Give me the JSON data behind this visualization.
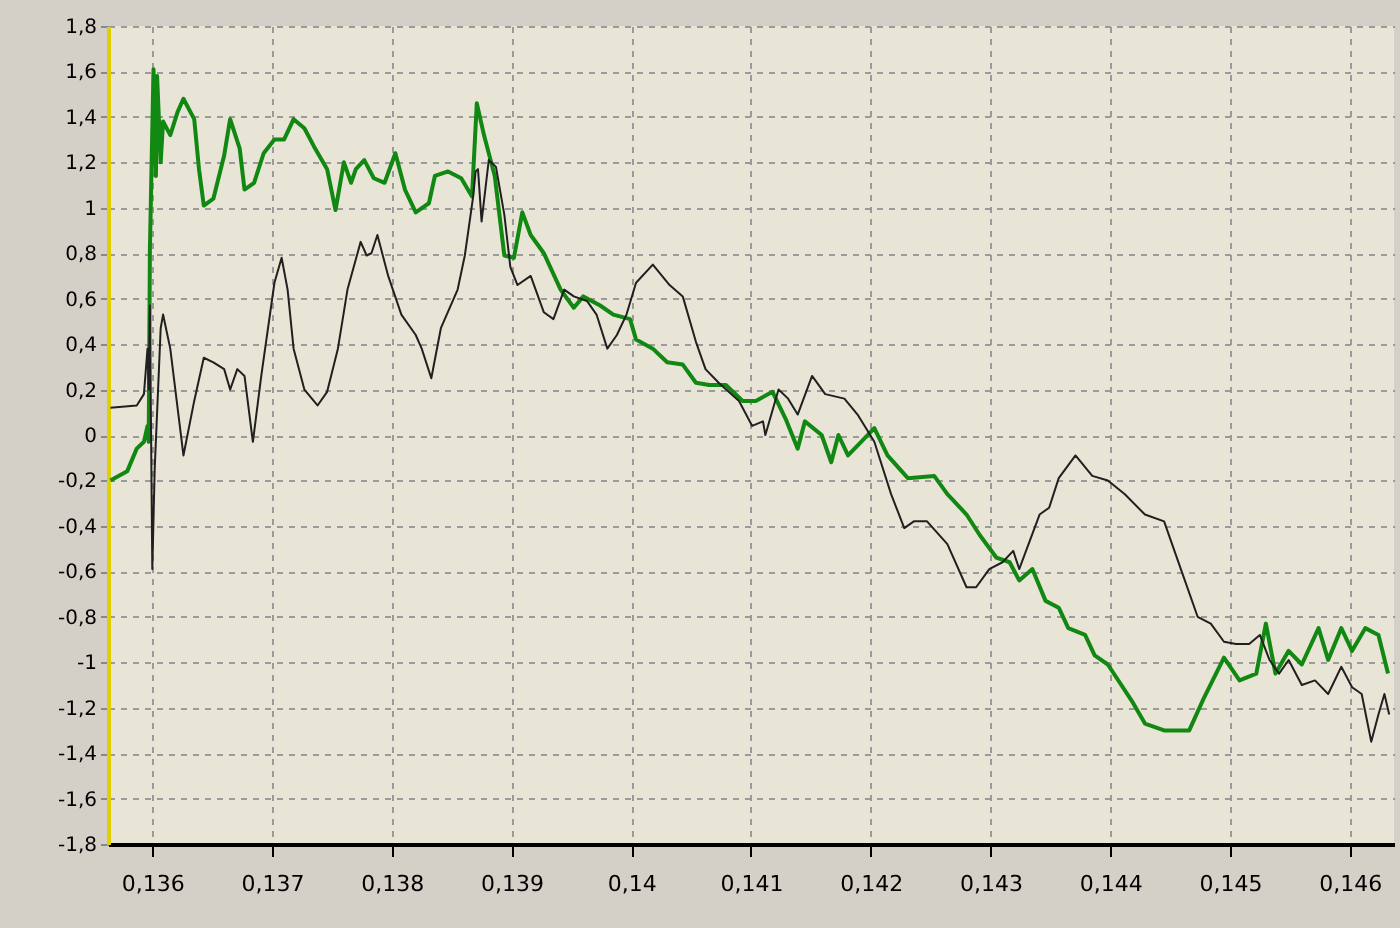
{
  "chart_data": {
    "type": "line",
    "xlim": [
      0.13563,
      0.14637
    ],
    "ylim": [
      -1.8,
      1.8
    ],
    "xticks": [
      {
        "value": 0.136,
        "label": "0,136"
      },
      {
        "value": 0.137,
        "label": "0,137"
      },
      {
        "value": 0.138,
        "label": "0,138"
      },
      {
        "value": 0.139,
        "label": "0,139"
      },
      {
        "value": 0.14,
        "label": "0,14"
      },
      {
        "value": 0.141,
        "label": "0,141"
      },
      {
        "value": 0.142,
        "label": "0,142"
      },
      {
        "value": 0.143,
        "label": "0,143"
      },
      {
        "value": 0.144,
        "label": "0,144"
      },
      {
        "value": 0.145,
        "label": "0,145"
      },
      {
        "value": 0.146,
        "label": "0,146"
      }
    ],
    "yticks": [
      {
        "value": 1.8,
        "label": "1,8"
      },
      {
        "value": 1.6,
        "label": "1,6"
      },
      {
        "value": 1.4,
        "label": "1,4"
      },
      {
        "value": 1.2,
        "label": "1,2"
      },
      1,
      {
        "value": 0.8,
        "label": "0,8"
      },
      {
        "value": 0.6,
        "label": "0,6"
      },
      {
        "value": 0.4,
        "label": "0,4"
      },
      {
        "value": 0.2,
        "label": "0,2"
      },
      0,
      {
        "value": -0.2,
        "label": "-0,2"
      },
      {
        "value": -0.4,
        "label": "-0,4"
      },
      {
        "value": -0.6,
        "label": "-0,6"
      },
      {
        "value": -0.8,
        "label": "-0,8"
      },
      -1,
      {
        "value": -1.2,
        "label": "-1,2"
      },
      {
        "value": -1.4,
        "label": "-1,4"
      },
      {
        "value": -1.6,
        "label": "-1,6"
      },
      {
        "value": -1.8,
        "label": "-1,8"
      }
    ],
    "grid": true,
    "line_style": "solid",
    "series": [
      {
        "color": "#202020",
        "x": [
          0.13565,
          0.13587,
          0.13593,
          0.13596,
          0.13597,
          0.13598,
          0.136,
          0.13602,
          0.13607,
          0.13609,
          0.13615,
          0.13626,
          0.13635,
          0.13643,
          0.13651,
          0.1366,
          0.13665,
          0.13671,
          0.13677,
          0.13684,
          0.13691,
          0.13702,
          0.13708,
          0.13713,
          0.13718,
          0.13727,
          0.13738,
          0.13746,
          0.13755,
          0.13763,
          0.13774,
          0.13779,
          0.13783,
          0.13788,
          0.13797,
          0.13808,
          0.1382,
          0.13825,
          0.13833,
          0.13841,
          0.13855,
          0.13861,
          0.13868,
          0.1387,
          0.13872,
          0.13875,
          0.13881,
          0.13887,
          0.13894,
          0.13899,
          0.13905,
          0.13916,
          0.13927,
          0.13935,
          0.13944,
          0.13952,
          0.13963,
          0.13971,
          0.1398,
          0.13988,
          0.13996,
          0.14004,
          0.14018,
          0.14032,
          0.14043,
          0.14054,
          0.14062,
          0.14073,
          0.1409,
          0.14101,
          0.1411,
          0.14112,
          0.14123,
          0.14131,
          0.14139,
          0.14151,
          0.14162,
          0.14178,
          0.14189,
          0.14203,
          0.14217,
          0.14228,
          0.14236,
          0.14247,
          0.14264,
          0.1428,
          0.14288,
          0.14299,
          0.1431,
          0.14319,
          0.14324,
          0.14341,
          0.14349,
          0.14357,
          0.14371,
          0.14385,
          0.14398,
          0.14412,
          0.14429,
          0.14445,
          0.14459,
          0.14473,
          0.14484,
          0.14495,
          0.14505,
          0.14516,
          0.14525,
          0.14533,
          0.14541,
          0.14549,
          0.1456,
          0.14571,
          0.14582,
          0.14593,
          0.14602,
          0.1461,
          0.14618,
          0.14624,
          0.14629,
          0.14633
        ],
        "values": [
          0.12,
          0.13,
          0.18,
          0.38,
          0.2,
          0.57,
          -0.59,
          -0.15,
          0.47,
          0.53,
          0.38,
          -0.09,
          0.15,
          0.34,
          0.32,
          0.29,
          0.2,
          0.29,
          0.26,
          -0.03,
          0.26,
          0.67,
          0.78,
          0.64,
          0.38,
          0.2,
          0.13,
          0.19,
          0.38,
          0.64,
          0.85,
          0.79,
          0.8,
          0.88,
          0.7,
          0.53,
          0.44,
          0.38,
          0.25,
          0.47,
          0.64,
          0.79,
          1.05,
          1.16,
          1.17,
          0.94,
          1.21,
          1.18,
          0.97,
          0.74,
          0.66,
          0.7,
          0.54,
          0.51,
          0.64,
          0.61,
          0.59,
          0.53,
          0.38,
          0.44,
          0.53,
          0.67,
          0.75,
          0.66,
          0.61,
          0.41,
          0.29,
          0.23,
          0.15,
          0.04,
          0.06,
          0.0,
          0.2,
          0.16,
          0.09,
          0.26,
          0.18,
          0.16,
          0.09,
          -0.03,
          -0.26,
          -0.41,
          -0.38,
          -0.38,
          -0.48,
          -0.67,
          -0.67,
          -0.59,
          -0.56,
          -0.51,
          -0.59,
          -0.35,
          -0.32,
          -0.19,
          -0.09,
          -0.18,
          -0.2,
          -0.26,
          -0.35,
          -0.38,
          -0.59,
          -0.8,
          -0.83,
          -0.91,
          -0.92,
          -0.92,
          -0.88,
          -0.99,
          -1.05,
          -0.99,
          -1.1,
          -1.08,
          -1.14,
          -1.02,
          -1.11,
          -1.14,
          -1.35,
          -1.23,
          -1.14,
          -1.23
        ]
      },
      {
        "color": "#118811",
        "x": [
          0.13565,
          0.13579,
          0.13587,
          0.13593,
          0.13596,
          0.13597,
          0.13598,
          0.13601,
          0.13603,
          0.13604,
          0.13607,
          0.13609,
          0.13615,
          0.13621,
          0.13626,
          0.13635,
          0.13639,
          0.13643,
          0.13651,
          0.1366,
          0.13665,
          0.13673,
          0.13677,
          0.13685,
          0.13693,
          0.13702,
          0.1371,
          0.13718,
          0.13727,
          0.13735,
          0.13746,
          0.13753,
          0.1376,
          0.13766,
          0.1377,
          0.13777,
          0.13785,
          0.13794,
          0.13803,
          0.13811,
          0.1382,
          0.13831,
          0.13836,
          0.13847,
          0.13858,
          0.13867,
          0.13871,
          0.13877,
          0.13886,
          0.13894,
          0.13902,
          0.13909,
          0.13916,
          0.13927,
          0.13941,
          0.13952,
          0.1396,
          0.13974,
          0.13985,
          0.13999,
          0.14004,
          0.14018,
          0.1403,
          0.14043,
          0.14054,
          0.14065,
          0.14079,
          0.14093,
          0.14104,
          0.14118,
          0.14129,
          0.14139,
          0.14145,
          0.14159,
          0.14167,
          0.14173,
          0.14181,
          0.14192,
          0.14203,
          0.14214,
          0.14231,
          0.14253,
          0.14264,
          0.1428,
          0.14291,
          0.14305,
          0.14316,
          0.14324,
          0.14335,
          0.14346,
          0.14357,
          0.14365,
          0.14379,
          0.14387,
          0.14398,
          0.14418,
          0.14429,
          0.14445,
          0.14466,
          0.14478,
          0.14495,
          0.14508,
          0.14522,
          0.1453,
          0.14538,
          0.14549,
          0.1456,
          0.14574,
          0.14582,
          0.14593,
          0.14602,
          0.14613,
          0.14624,
          0.14632
        ],
        "values": [
          -0.2,
          -0.16,
          -0.06,
          -0.03,
          0.04,
          -0.03,
          0.82,
          1.61,
          1.14,
          1.58,
          1.2,
          1.38,
          1.32,
          1.42,
          1.48,
          1.39,
          1.17,
          1.01,
          1.04,
          1.23,
          1.39,
          1.26,
          1.08,
          1.11,
          1.24,
          1.3,
          1.3,
          1.39,
          1.35,
          1.27,
          1.17,
          0.99,
          1.2,
          1.11,
          1.17,
          1.21,
          1.13,
          1.11,
          1.24,
          1.08,
          0.98,
          1.02,
          1.14,
          1.16,
          1.13,
          1.05,
          1.46,
          1.32,
          1.14,
          0.79,
          0.78,
          0.98,
          0.88,
          0.8,
          0.64,
          0.56,
          0.61,
          0.57,
          0.53,
          0.51,
          0.42,
          0.38,
          0.32,
          0.31,
          0.23,
          0.22,
          0.22,
          0.15,
          0.15,
          0.19,
          0.07,
          -0.06,
          0.06,
          0.0,
          -0.12,
          0.0,
          -0.09,
          -0.03,
          0.03,
          -0.09,
          -0.19,
          -0.18,
          -0.26,
          -0.35,
          -0.44,
          -0.54,
          -0.56,
          -0.64,
          -0.59,
          -0.73,
          -0.76,
          -0.85,
          -0.88,
          -0.97,
          -1.01,
          -1.17,
          -1.27,
          -1.3,
          -1.3,
          -1.16,
          -0.98,
          -1.08,
          -1.05,
          -0.83,
          -1.05,
          -0.95,
          -1.01,
          -0.85,
          -0.99,
          -0.85,
          -0.95,
          -0.85,
          -0.88,
          -1.05
        ]
      }
    ]
  }
}
